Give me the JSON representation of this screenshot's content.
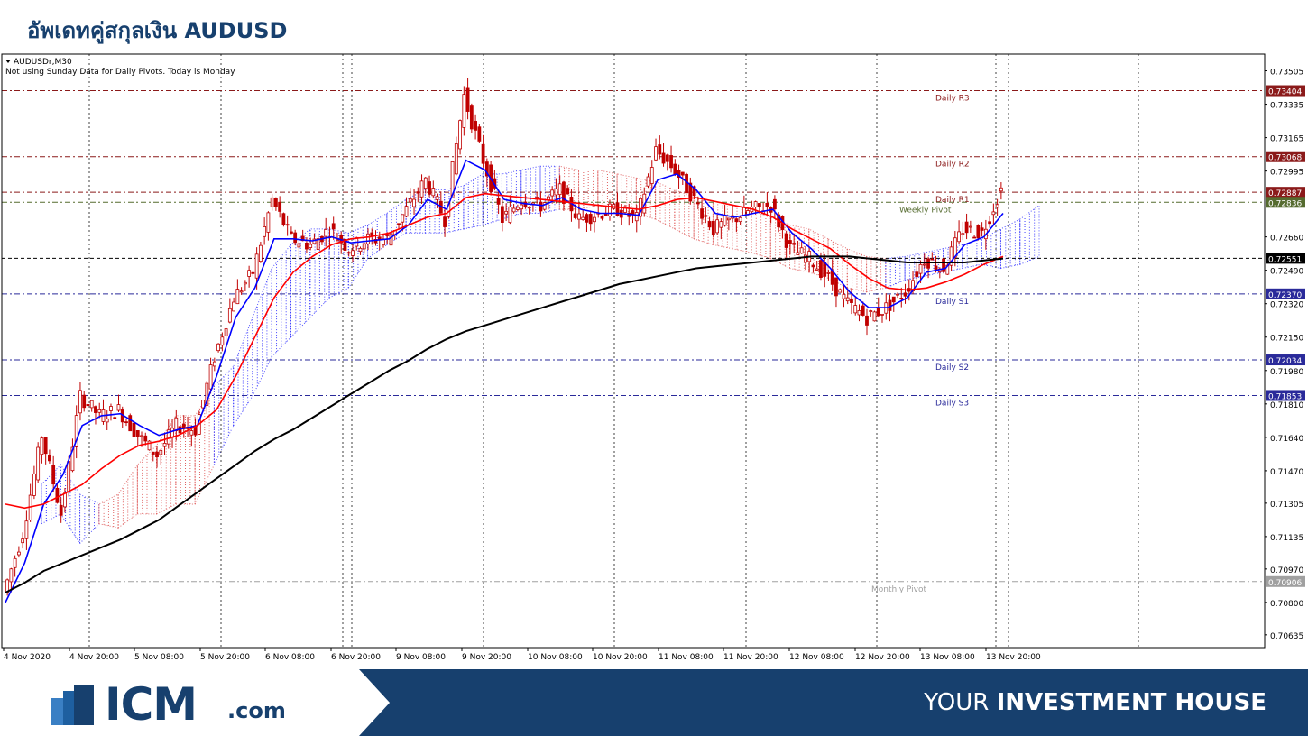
{
  "page": {
    "title": "อัพเดทคู่สกุลเงิน AUDUSD"
  },
  "footer": {
    "logo_text": "ICM",
    "logo_suffix": ".com",
    "tagline_light": "YOUR ",
    "tagline_bold": "INVESTMENT HOUSE"
  },
  "colors": {
    "brand": "#17406e",
    "resistance": "#8b1a1a",
    "support": "#2a2a9a",
    "weekly_pivot": "#556b2f",
    "monthly_pivot": "#a0a0a0",
    "ema_fast": "#0000ff",
    "ema_slow": "#ff0000",
    "ma_long": "#000000",
    "candle": "#c00000",
    "cloud_bear": "#e06060",
    "cloud_bull": "#4040ff"
  },
  "chart_data": {
    "type": "candlestick",
    "symbol_label": "AUDUSDr,M30",
    "info_text": "Not using Sunday Data for Daily Pivots.  Today is Monday",
    "ylim": [
      0.7057,
      0.7359
    ],
    "y_ticks": [
      0.73505,
      0.73335,
      0.73165,
      0.72995,
      0.7266,
      0.7249,
      0.7232,
      0.7215,
      0.7198,
      0.7181,
      0.7164,
      0.7147,
      0.71305,
      0.71135,
      0.7097,
      0.708,
      0.70635
    ],
    "x_labels": [
      "4 Nov 2020",
      "4 Nov 20:00",
      "5 Nov 08:00",
      "5 Nov 20:00",
      "6 Nov 08:00",
      "6 Nov 20:00",
      "9 Nov 08:00",
      "9 Nov 20:00",
      "10 Nov 08:00",
      "10 Nov 20:00",
      "11 Nov 08:00",
      "11 Nov 20:00",
      "12 Nov 08:00",
      "12 Nov 20:00",
      "13 Nov 08:00",
      "13 Nov 20:00"
    ],
    "period_separators": [
      0,
      1,
      2,
      3,
      4,
      5,
      6,
      7,
      8,
      9,
      10,
      11,
      12,
      13,
      14,
      15,
      16,
      17
    ],
    "levels": [
      {
        "name": "Daily R3",
        "value": 0.73404,
        "tag": "0.73404",
        "kind": "resistance"
      },
      {
        "name": "Daily R2",
        "value": 0.73068,
        "tag": "0.73068",
        "kind": "resistance"
      },
      {
        "name": "Daily R1",
        "value": 0.72887,
        "tag": "0.72887",
        "kind": "resistance"
      },
      {
        "name": "Weekly Pivot",
        "value": 0.72836,
        "tag": "0.72836",
        "kind": "weekly"
      },
      {
        "name": "",
        "value": 0.72551,
        "tag": "0.72551",
        "kind": "current"
      },
      {
        "name": "Daily S1",
        "value": 0.7237,
        "tag": "0.72370",
        "kind": "support"
      },
      {
        "name": "Daily S2",
        "value": 0.72034,
        "tag": "0.72034",
        "kind": "support"
      },
      {
        "name": "Daily S3",
        "value": 0.71853,
        "tag": "0.71853",
        "kind": "support"
      },
      {
        "name": "Monthly Pivot",
        "value": 0.70906,
        "tag": "0.70906",
        "kind": "monthly"
      }
    ],
    "close_path": [
      [
        0,
        0.7085
      ],
      [
        1,
        0.7115
      ],
      [
        2,
        0.7165
      ],
      [
        3,
        0.7125
      ],
      [
        4,
        0.7185
      ],
      [
        5,
        0.7175
      ],
      [
        6,
        0.7178
      ],
      [
        7,
        0.7165
      ],
      [
        8,
        0.7155
      ],
      [
        9,
        0.717
      ],
      [
        10,
        0.7168
      ],
      [
        11,
        0.7205
      ],
      [
        12,
        0.7235
      ],
      [
        13,
        0.7248
      ],
      [
        14,
        0.7285
      ],
      [
        15,
        0.7265
      ],
      [
        16,
        0.7262
      ],
      [
        17,
        0.727
      ],
      [
        18,
        0.726
      ],
      [
        19,
        0.7265
      ],
      [
        20,
        0.7265
      ],
      [
        21,
        0.728
      ],
      [
        22,
        0.7295
      ],
      [
        23,
        0.7275
      ],
      [
        24,
        0.7338
      ],
      [
        25,
        0.7305
      ],
      [
        26,
        0.7275
      ],
      [
        27,
        0.7285
      ],
      [
        28,
        0.7282
      ],
      [
        29,
        0.729
      ],
      [
        30,
        0.7275
      ],
      [
        31,
        0.7278
      ],
      [
        32,
        0.728
      ],
      [
        33,
        0.7275
      ],
      [
        34,
        0.731
      ],
      [
        35,
        0.73
      ],
      [
        36,
        0.7285
      ],
      [
        37,
        0.727
      ],
      [
        38,
        0.7275
      ],
      [
        39,
        0.728
      ],
      [
        40,
        0.7282
      ],
      [
        41,
        0.726
      ],
      [
        42,
        0.7255
      ],
      [
        43,
        0.7245
      ],
      [
        44,
        0.7232
      ],
      [
        45,
        0.7225
      ],
      [
        46,
        0.723
      ],
      [
        47,
        0.7238
      ],
      [
        48,
        0.7255
      ],
      [
        49,
        0.725
      ],
      [
        50,
        0.727
      ],
      [
        51,
        0.7268
      ],
      [
        52,
        0.729
      ]
    ],
    "series": [
      {
        "name": "",
        "role": "ema_fast",
        "values": [
          0.708,
          0.71,
          0.713,
          0.7145,
          0.717,
          0.7175,
          0.7176,
          0.717,
          0.7165,
          0.7168,
          0.717,
          0.7195,
          0.7225,
          0.724,
          0.7265,
          0.7265,
          0.7264,
          0.7266,
          0.7263,
          0.7264,
          0.7265,
          0.7272,
          0.7285,
          0.728,
          0.7305,
          0.73,
          0.7285,
          0.7283,
          0.7282,
          0.7286,
          0.728,
          0.7278,
          0.7278,
          0.7277,
          0.7295,
          0.7298,
          0.729,
          0.7278,
          0.7276,
          0.7278,
          0.728,
          0.7268,
          0.726,
          0.725,
          0.7238,
          0.723,
          0.723,
          0.7235,
          0.7248,
          0.725,
          0.7262,
          0.7266,
          0.7278
        ]
      },
      {
        "name": "",
        "role": "ema_slow",
        "values": [
          0.713,
          0.7128,
          0.713,
          0.7135,
          0.714,
          0.7148,
          0.7155,
          0.716,
          0.7162,
          0.7165,
          0.717,
          0.7178,
          0.7195,
          0.7215,
          0.7235,
          0.7248,
          0.7256,
          0.7262,
          0.7265,
          0.7266,
          0.7268,
          0.7272,
          0.7276,
          0.7278,
          0.7286,
          0.7288,
          0.7287,
          0.7286,
          0.7285,
          0.7284,
          0.7283,
          0.7282,
          0.7281,
          0.728,
          0.7282,
          0.7285,
          0.7286,
          0.7284,
          0.7282,
          0.728,
          0.7276,
          0.727,
          0.7265,
          0.726,
          0.7252,
          0.7245,
          0.724,
          0.7239,
          0.724,
          0.7243,
          0.7247,
          0.7252,
          0.7256
        ]
      },
      {
        "name": "",
        "role": "ma_long",
        "values": [
          0.7085,
          0.709,
          0.7096,
          0.71,
          0.7104,
          0.7108,
          0.7112,
          0.7117,
          0.7122,
          0.7129,
          0.7136,
          0.7143,
          0.715,
          0.7157,
          0.7163,
          0.7168,
          0.7174,
          0.718,
          0.7186,
          0.7192,
          0.7198,
          0.7203,
          0.7209,
          0.7214,
          0.7218,
          0.7221,
          0.7224,
          0.7227,
          0.723,
          0.7233,
          0.7236,
          0.7239,
          0.7242,
          0.7244,
          0.7246,
          0.7248,
          0.725,
          0.7251,
          0.7252,
          0.7253,
          0.7254,
          0.7255,
          0.7256,
          0.7256,
          0.7256,
          0.7255,
          0.7254,
          0.7253,
          0.7253,
          0.7253,
          0.7253,
          0.7254,
          0.7255
        ]
      }
    ],
    "cloud": [
      [
        0,
        0.712,
        0.714
      ],
      [
        1,
        0.7125,
        0.715
      ],
      [
        2,
        0.711,
        0.7135
      ],
      [
        3,
        0.712,
        0.713
      ],
      [
        4,
        0.7118,
        0.7135
      ],
      [
        5,
        0.7125,
        0.715
      ],
      [
        6,
        0.7125,
        0.716
      ],
      [
        7,
        0.713,
        0.7175
      ],
      [
        8,
        0.713,
        0.7175
      ],
      [
        9,
        0.715,
        0.719
      ],
      [
        10,
        0.717,
        0.72
      ],
      [
        11,
        0.7185,
        0.7225
      ],
      [
        12,
        0.7205,
        0.725
      ],
      [
        13,
        0.7215,
        0.7262
      ],
      [
        14,
        0.7225,
        0.727
      ],
      [
        15,
        0.7235,
        0.727
      ],
      [
        16,
        0.724,
        0.7268
      ],
      [
        17,
        0.7255,
        0.7272
      ],
      [
        18,
        0.7262,
        0.7278
      ],
      [
        19,
        0.7268,
        0.7285
      ],
      [
        20,
        0.7268,
        0.729
      ],
      [
        21,
        0.7268,
        0.729
      ],
      [
        22,
        0.727,
        0.7292
      ],
      [
        23,
        0.7272,
        0.7298
      ],
      [
        24,
        0.7275,
        0.7298
      ],
      [
        25,
        0.7278,
        0.73
      ],
      [
        26,
        0.7278,
        0.7302
      ],
      [
        27,
        0.728,
        0.7302
      ],
      [
        28,
        0.728,
        0.73
      ],
      [
        29,
        0.7282,
        0.73
      ],
      [
        30,
        0.728,
        0.7298
      ],
      [
        31,
        0.7278,
        0.7296
      ],
      [
        32,
        0.7275,
        0.7294
      ],
      [
        33,
        0.727,
        0.729
      ],
      [
        34,
        0.7265,
        0.7286
      ],
      [
        35,
        0.7262,
        0.7284
      ],
      [
        36,
        0.726,
        0.7282
      ],
      [
        37,
        0.7258,
        0.728
      ],
      [
        38,
        0.7255,
        0.7276
      ],
      [
        39,
        0.725,
        0.7272
      ],
      [
        40,
        0.7248,
        0.727
      ],
      [
        41,
        0.7245,
        0.7265
      ],
      [
        42,
        0.724,
        0.726
      ],
      [
        43,
        0.7238,
        0.7256
      ],
      [
        44,
        0.724,
        0.7255
      ],
      [
        45,
        0.7244,
        0.7256
      ],
      [
        46,
        0.7246,
        0.7258
      ],
      [
        47,
        0.7248,
        0.726
      ],
      [
        48,
        0.725,
        0.7262
      ],
      [
        49,
        0.7252,
        0.7265
      ],
      [
        50,
        0.725,
        0.727
      ],
      [
        51,
        0.7252,
        0.7275
      ],
      [
        52,
        0.7256,
        0.7282
      ]
    ],
    "grid": true,
    "legend": "none"
  }
}
